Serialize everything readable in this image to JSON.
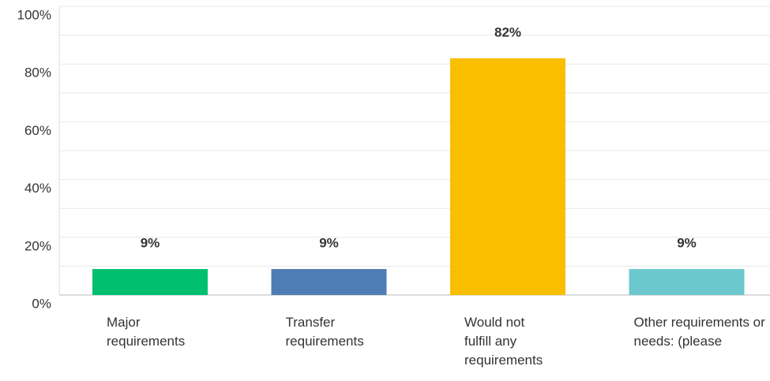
{
  "chart_data": {
    "type": "bar",
    "categories": [
      "Major requirements",
      "Transfer requirements",
      "Would not fulfill any requirements",
      "Other requirements or needs: (please"
    ],
    "values": [
      9,
      9,
      82,
      9
    ],
    "value_labels": [
      "9%",
      "9%",
      "82%",
      "9%"
    ],
    "colors": [
      "#00bf6f",
      "#507cb6",
      "#f9be00",
      "#6bc8cd"
    ],
    "ylim": [
      0,
      100
    ],
    "yticks": [
      {
        "value": 0,
        "label": "0%"
      },
      {
        "value": 20,
        "label": "20%"
      },
      {
        "value": 40,
        "label": "40%"
      },
      {
        "value": 60,
        "label": "60%"
      },
      {
        "value": 80,
        "label": "80%"
      },
      {
        "value": 100,
        "label": "100%"
      }
    ],
    "minor_yticks": [
      10,
      30,
      50,
      70,
      90
    ],
    "grid": true
  }
}
